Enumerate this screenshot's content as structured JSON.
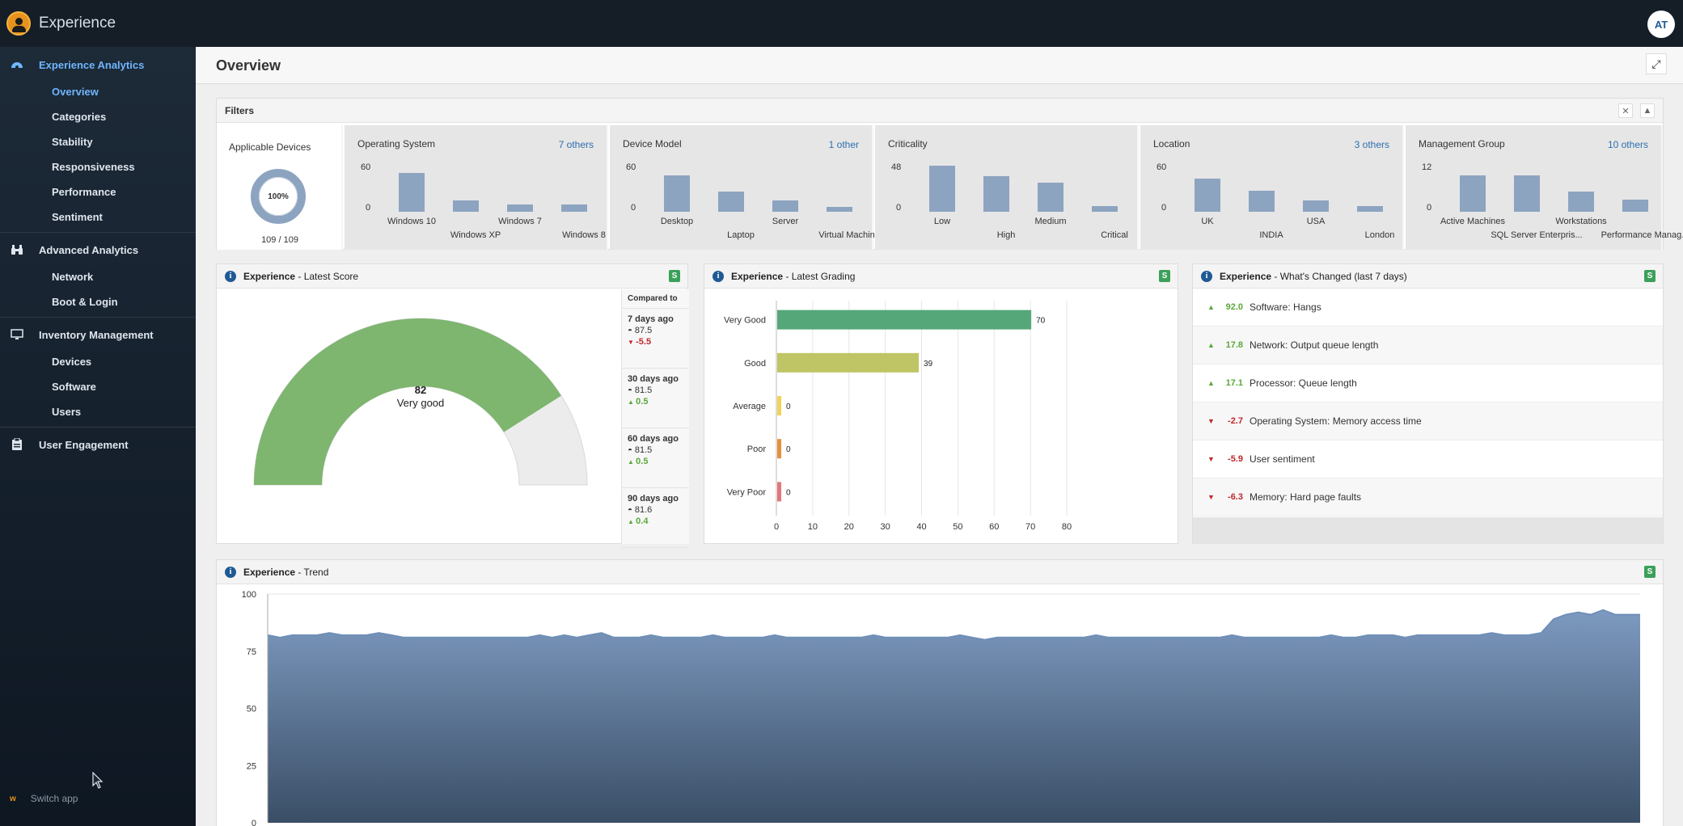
{
  "topbar": {
    "app_title": "Experience",
    "user_initials": "AT"
  },
  "sidebar": {
    "groups": [
      {
        "label": "Experience Analytics",
        "icon": "dashboard-icon",
        "items": [
          "Overview",
          "Categories",
          "Stability",
          "Responsiveness",
          "Performance",
          "Sentiment"
        ]
      },
      {
        "label": "Advanced Analytics",
        "icon": "binoculars-icon",
        "items": [
          "Network",
          "Boot & Login"
        ]
      },
      {
        "label": "Inventory Management",
        "icon": "monitor-icon",
        "items": [
          "Devices",
          "Software",
          "Users"
        ]
      },
      {
        "label": "User Engagement",
        "icon": "clipboard-icon",
        "items": []
      }
    ],
    "switch_app": "Switch app",
    "switch_app_logo": "w"
  },
  "page": {
    "title": "Overview"
  },
  "filters": {
    "title": "Filters",
    "devices": {
      "title": "Applicable Devices",
      "percent": "100%",
      "count": "109 / 109"
    },
    "cards": [
      {
        "title": "Operating System",
        "others": "7 others",
        "ymax": "60",
        "ymin": "0",
        "bars": [
          {
            "label": "Windows 10",
            "value": 48,
            "row": 0
          },
          {
            "label": "Windows XP",
            "value": 14,
            "row": 1
          },
          {
            "label": "Windows 7",
            "value": 9,
            "row": 0
          },
          {
            "label": "Windows 8",
            "value": 9,
            "row": 1
          }
        ]
      },
      {
        "title": "Device Model",
        "others": "1 other",
        "ymax": "60",
        "ymin": "0",
        "bars": [
          {
            "label": "Desktop",
            "value": 45,
            "row": 0
          },
          {
            "label": "Laptop",
            "value": 25,
            "row": 1
          },
          {
            "label": "Server",
            "value": 14,
            "row": 0
          },
          {
            "label": "Virtual Machine",
            "value": 6,
            "row": 1
          }
        ]
      },
      {
        "title": "Criticality",
        "others": "",
        "ymax": "48",
        "ymin": "0",
        "bars": [
          {
            "label": "Low",
            "value": 46,
            "row": 0
          },
          {
            "label": "High",
            "value": 35,
            "row": 1
          },
          {
            "label": "Medium",
            "value": 29,
            "row": 0
          },
          {
            "label": "Critical",
            "value": 6,
            "row": 1
          }
        ]
      },
      {
        "title": "Location",
        "others": "3 others",
        "ymax": "60",
        "ymin": "0",
        "bars": [
          {
            "label": "UK",
            "value": 41,
            "row": 0
          },
          {
            "label": "INDIA",
            "value": 26,
            "row": 1
          },
          {
            "label": "USA",
            "value": 14,
            "row": 0
          },
          {
            "label": "London",
            "value": 7,
            "row": 1
          }
        ]
      },
      {
        "title": "Management Group",
        "others": "10 others",
        "ymax": "12",
        "ymin": "0",
        "bars": [
          {
            "label": "Active Machines",
            "value": 9,
            "row": 0
          },
          {
            "label": "SQL Server Enterpris...",
            "value": 9,
            "row": 1
          },
          {
            "label": "Workstations",
            "value": 5,
            "row": 0
          },
          {
            "label": "Performance Manag...",
            "value": 3,
            "row": 1
          }
        ]
      }
    ]
  },
  "score_panel": {
    "title_bold": "Experience",
    "title_rest": " - Latest Score",
    "badge": "S",
    "score": "82",
    "rating": "Very good",
    "score_fraction": 0.82,
    "compared_title": "Compared to",
    "compared": [
      {
        "days": "7 days ago",
        "value": "87.5",
        "delta": "-5.5",
        "dir": "down"
      },
      {
        "days": "30 days ago",
        "value": "81.5",
        "delta": "0.5",
        "dir": "up"
      },
      {
        "days": "60 days ago",
        "value": "81.5",
        "delta": "0.5",
        "dir": "up"
      },
      {
        "days": "90 days ago",
        "value": "81.6",
        "delta": "0.4",
        "dir": "up"
      }
    ]
  },
  "grading_panel": {
    "title_bold": "Experience",
    "title_rest": " - Latest Grading",
    "badge": "S",
    "chart_data": {
      "type": "bar",
      "orientation": "horizontal",
      "categories": [
        "Very Good",
        "Good",
        "Average",
        "Poor",
        "Very Poor"
      ],
      "values": [
        70,
        39,
        0,
        0,
        0
      ],
      "colors": [
        "#55a77a",
        "#bfc564",
        "#f1d35b",
        "#e98f3c",
        "#e3767a"
      ],
      "xlim": [
        0,
        80
      ],
      "xticks": [
        0,
        10,
        20,
        30,
        40,
        50,
        60,
        70,
        80
      ],
      "grid": true
    }
  },
  "changes_panel": {
    "title_bold": "Experience",
    "title_rest": " - What's Changed (last 7 days)",
    "badge": "S",
    "rows": [
      {
        "value": "92.0",
        "label": "Software: Hangs",
        "dir": "up"
      },
      {
        "value": "17.8",
        "label": "Network: Output queue length",
        "dir": "up"
      },
      {
        "value": "17.1",
        "label": "Processor: Queue length",
        "dir": "up"
      },
      {
        "value": "-2.7",
        "label": "Operating System: Memory access time",
        "dir": "down"
      },
      {
        "value": "-5.9",
        "label": "User sentiment",
        "dir": "down"
      },
      {
        "value": "-6.3",
        "label": "Memory: Hard page faults",
        "dir": "down"
      }
    ]
  },
  "trend_panel": {
    "title_bold": "Experience",
    "title_rest": " - Trend",
    "badge": "S",
    "chart_data": {
      "type": "area",
      "ylim": [
        0,
        100
      ],
      "yticks": [
        0,
        25,
        50,
        75,
        100
      ],
      "color": "#6f8fb8",
      "values": [
        82,
        81,
        82,
        82,
        82,
        83,
        82,
        82,
        82,
        83,
        82,
        81,
        81,
        81,
        81,
        81,
        81,
        81,
        81,
        81,
        81,
        81,
        82,
        81,
        82,
        81,
        82,
        83,
        81,
        81,
        81,
        82,
        81,
        81,
        81,
        81,
        82,
        81,
        81,
        81,
        81,
        82,
        81,
        81,
        81,
        81,
        81,
        81,
        81,
        82,
        81,
        81,
        81,
        81,
        81,
        81,
        82,
        81,
        80,
        81,
        81,
        81,
        81,
        81,
        81,
        81,
        81,
        82,
        81,
        81,
        81,
        81,
        81,
        81,
        81,
        81,
        81,
        81,
        82,
        81,
        81,
        81,
        81,
        81,
        81,
        81,
        82,
        81,
        81,
        82,
        82,
        82,
        81,
        82,
        82,
        82,
        82,
        82,
        82,
        83,
        82,
        82,
        82,
        83,
        89,
        91,
        92,
        91,
        93,
        91,
        91,
        91
      ]
    }
  }
}
